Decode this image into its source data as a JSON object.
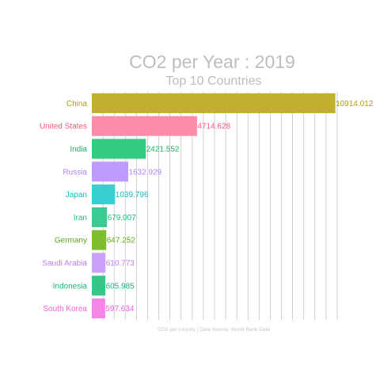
{
  "chart_data": {
    "type": "bar",
    "orientation": "horizontal",
    "title": "CO2 per Year : 2019",
    "subtitle": "Top 10 Countries",
    "caption": "CO2 per country | Data Source: World Bank Data",
    "xlabel": "",
    "ylabel": "",
    "xlim": [
      0,
      11000
    ],
    "grid": true,
    "legend": "none",
    "categories": [
      "China",
      "United States",
      "India",
      "Russia",
      "Japan",
      "Iran",
      "Germany",
      "Saudi Arabia",
      "Indonesia",
      "South Korea"
    ],
    "values": [
      10914.012,
      4714.628,
      2421.552,
      1632.929,
      1039.796,
      679.007,
      647.252,
      610.773,
      605.985,
      597.634
    ],
    "value_labels": [
      "10914.012",
      "4714.628",
      "2421.552",
      "1632.929",
      "1039.796",
      "679.007",
      "647.252",
      "610.773",
      "605.985",
      "597.634"
    ],
    "colors": [
      "#C2AF2D",
      "#FF8BAB",
      "#33CC80",
      "#C09BFF",
      "#35D0CF",
      "#3ACB92",
      "#7DBE2F",
      "#C9A1FB",
      "#35C78A",
      "#F586E8"
    ],
    "label_colors": [
      "#B29C12",
      "#F9577F",
      "#12B765",
      "#AE84F7",
      "#16C0C0",
      "#1EBC7B",
      "#5FA81C",
      "#C47CEF",
      "#17B674",
      "#EF5FDB"
    ]
  }
}
